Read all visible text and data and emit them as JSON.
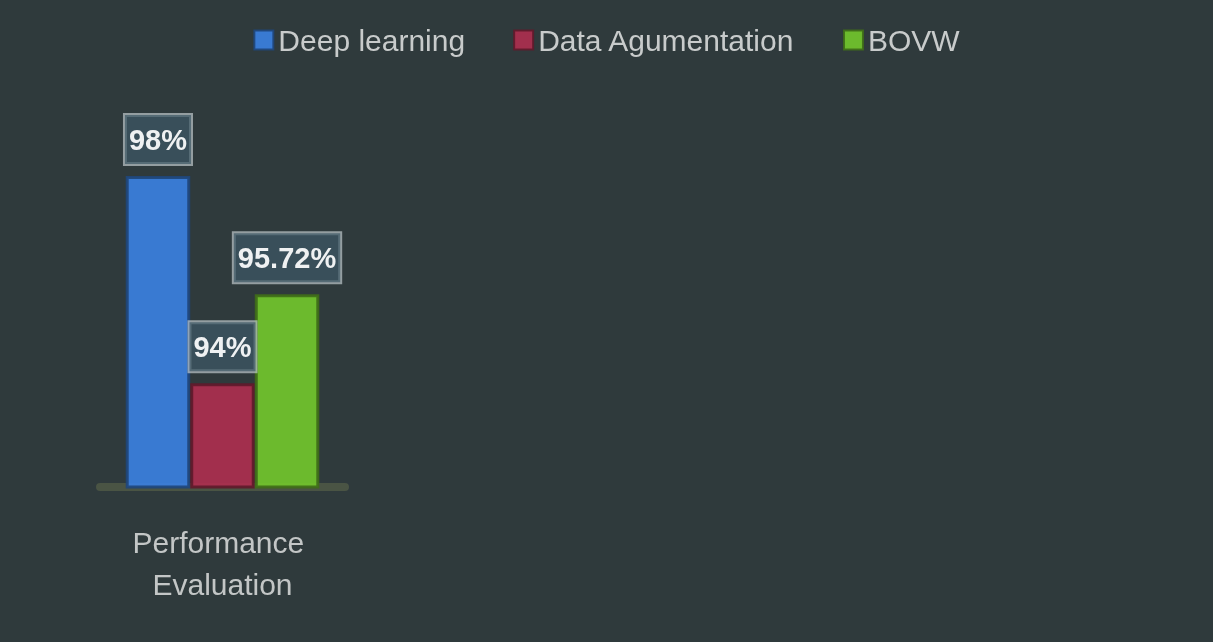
{
  "chart_data": {
    "type": "bar",
    "categories": [
      "Performance Evaluation"
    ],
    "series": [
      {
        "name": "Deep learning",
        "color": "#3b80df",
        "values": [
          98
        ],
        "value_labels": [
          "98%"
        ]
      },
      {
        "name": "Data Agumentation",
        "color": "#ad2f4f",
        "values": [
          94
        ],
        "value_labels": [
          "94%"
        ]
      },
      {
        "name": "BOVW",
        "color": "#72c52d",
        "values": [
          95.72
        ],
        "value_labels": [
          "95.72%"
        ]
      }
    ],
    "ylim": [
      92,
      98
    ],
    "tick_labels": "x",
    "grid": false,
    "legend": "top"
  }
}
